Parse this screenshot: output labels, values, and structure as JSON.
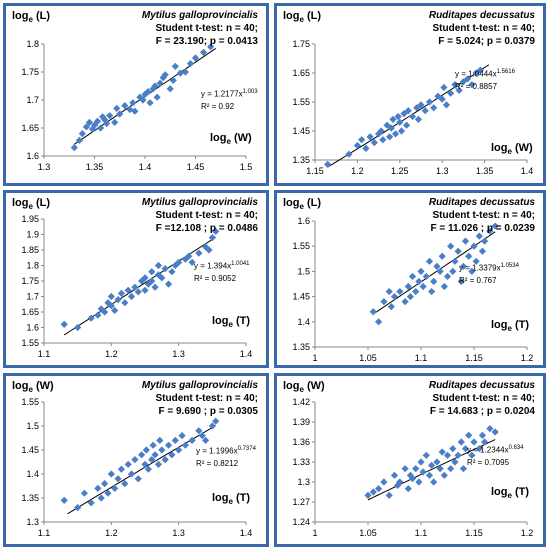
{
  "colors": {
    "border": "#3a68a8",
    "marker": "#4a7fc8",
    "line": "#000000"
  },
  "chart_data": [
    {
      "type": "scatter",
      "title": "Mytilus galloprovincialis",
      "test": "Student t-test: n = 40;",
      "stat": "F = 23.190; p = 0.0413",
      "ylabel_base": "log",
      "ylabel_sub": "e",
      "ylabel_var": "(L)",
      "xlabel_base": "log",
      "xlabel_sub": "e",
      "xlabel_var": "(W)",
      "eq_base": "y = 1.2177x",
      "eq_exp": "1.003",
      "r2": "R² = 0.92",
      "xlim": [
        1.3,
        1.5
      ],
      "ylim": [
        1.6,
        1.8
      ],
      "xticks": [
        "1.3",
        "1.35",
        "1.4",
        "1.45",
        "1.5"
      ],
      "yticks": [
        "1.6",
        "1.65",
        "1.7",
        "1.75",
        "1.8"
      ],
      "fit": {
        "a": 1.2177,
        "b": 1.003,
        "x_range": [
          1.33,
          1.47
        ]
      },
      "x": [
        1.33,
        1.335,
        1.338,
        1.342,
        1.345,
        1.348,
        1.35,
        1.353,
        1.356,
        1.358,
        1.36,
        1.362,
        1.365,
        1.37,
        1.372,
        1.375,
        1.38,
        1.385,
        1.388,
        1.39,
        1.395,
        1.398,
        1.4,
        1.403,
        1.405,
        1.408,
        1.41,
        1.412,
        1.415,
        1.418,
        1.42,
        1.425,
        1.428,
        1.43,
        1.435,
        1.44,
        1.445,
        1.45,
        1.458,
        1.465
      ],
      "y": [
        1.615,
        1.628,
        1.64,
        1.652,
        1.66,
        1.648,
        1.655,
        1.662,
        1.65,
        1.67,
        1.665,
        1.658,
        1.672,
        1.66,
        1.685,
        1.675,
        1.69,
        1.683,
        1.695,
        1.68,
        1.705,
        1.7,
        1.71,
        1.715,
        1.695,
        1.72,
        1.725,
        1.705,
        1.73,
        1.74,
        1.745,
        1.72,
        1.735,
        1.76,
        1.748,
        1.75,
        1.765,
        1.775,
        1.785,
        1.795
      ]
    },
    {
      "type": "scatter",
      "title": "Ruditapes decussatus",
      "test": "Student t-test: n = 40;",
      "stat": "F = 5.024; p = 0.0379",
      "ylabel_base": "log",
      "ylabel_sub": "e",
      "ylabel_var": "(L)",
      "xlabel_base": "log",
      "xlabel_sub": "e",
      "xlabel_var": "(W)",
      "eq_base": "y = 1.0444x",
      "eq_exp": "1.5616",
      "r2": "R² = 0.8857",
      "xlim": [
        1.15,
        1.4
      ],
      "ylim": [
        1.35,
        1.75
      ],
      "xticks": [
        "1.15",
        "1.2",
        "1.25",
        "1.3",
        "1.35",
        "1.4"
      ],
      "yticks": [
        "1.35",
        "1.45",
        "1.55",
        "1.65",
        "1.75"
      ],
      "fit": {
        "a": 1.0444,
        "b": 1.5616,
        "x_range": [
          1.165,
          1.355
        ]
      },
      "x": [
        1.165,
        1.19,
        1.2,
        1.205,
        1.21,
        1.215,
        1.22,
        1.225,
        1.228,
        1.23,
        1.235,
        1.238,
        1.24,
        1.242,
        1.245,
        1.248,
        1.25,
        1.252,
        1.255,
        1.258,
        1.26,
        1.265,
        1.27,
        1.272,
        1.275,
        1.28,
        1.285,
        1.29,
        1.295,
        1.3,
        1.302,
        1.305,
        1.31,
        1.315,
        1.32,
        1.325,
        1.33,
        1.335,
        1.34,
        1.345
      ],
      "y": [
        1.335,
        1.37,
        1.4,
        1.42,
        1.39,
        1.43,
        1.41,
        1.44,
        1.45,
        1.42,
        1.47,
        1.43,
        1.46,
        1.49,
        1.44,
        1.5,
        1.48,
        1.45,
        1.51,
        1.47,
        1.52,
        1.5,
        1.53,
        1.49,
        1.54,
        1.52,
        1.55,
        1.53,
        1.57,
        1.56,
        1.6,
        1.54,
        1.58,
        1.61,
        1.59,
        1.62,
        1.63,
        1.61,
        1.65,
        1.66
      ]
    },
    {
      "type": "scatter",
      "title": "Mytilus galloprovincialis",
      "test": "Student t-test: n = 40;",
      "stat": "F =12.108 ; p = 0.0486",
      "ylabel_base": "log",
      "ylabel_sub": "e",
      "ylabel_var": "(L)",
      "xlabel_base": "log",
      "xlabel_sub": "e",
      "xlabel_var": "(T)",
      "eq_base": "y = 1.394x",
      "eq_exp": "1.0041",
      "r2": "R² = 0.9052",
      "xlim": [
        1.1,
        1.4
      ],
      "ylim": [
        1.55,
        1.95
      ],
      "xticks": [
        "1.1",
        "1.2",
        "1.3",
        "1.4"
      ],
      "yticks": [
        "1.55",
        "1.6",
        "1.65",
        "1.7",
        "1.75",
        "1.8",
        "1.85",
        "1.9",
        "1.95"
      ],
      "fit": {
        "a": 1.394,
        "b": 1.0041,
        "x_range": [
          1.13,
          1.355
        ]
      },
      "x": [
        1.13,
        1.15,
        1.17,
        1.18,
        1.185,
        1.19,
        1.195,
        1.2,
        1.2,
        1.205,
        1.21,
        1.215,
        1.22,
        1.225,
        1.23,
        1.235,
        1.24,
        1.245,
        1.25,
        1.25,
        1.255,
        1.26,
        1.26,
        1.265,
        1.27,
        1.27,
        1.275,
        1.28,
        1.285,
        1.29,
        1.295,
        1.3,
        1.31,
        1.315,
        1.32,
        1.33,
        1.34,
        1.345,
        1.35,
        1.355
      ],
      "y": [
        1.61,
        1.6,
        1.63,
        1.64,
        1.66,
        1.65,
        1.68,
        1.67,
        1.7,
        1.655,
        1.69,
        1.71,
        1.68,
        1.72,
        1.7,
        1.73,
        1.715,
        1.75,
        1.72,
        1.76,
        1.74,
        1.78,
        1.75,
        1.73,
        1.77,
        1.8,
        1.76,
        1.79,
        1.74,
        1.78,
        1.8,
        1.81,
        1.82,
        1.83,
        1.81,
        1.84,
        1.86,
        1.85,
        1.89,
        1.91
      ]
    },
    {
      "type": "scatter",
      "title": "Ruditapes decussatus",
      "test": "Student t-test: n = 40;",
      "stat": "F = 11.026 ; p = 0.0239",
      "ylabel_base": "log",
      "ylabel_sub": "e",
      "ylabel_var": "(L)",
      "xlabel_base": "log",
      "xlabel_sub": "e",
      "xlabel_var": "(T)",
      "eq_base": "y = 1.3379x",
      "eq_exp": "1.0534",
      "r2": "R² = 0.767",
      "xlim": [
        1,
        1.2
      ],
      "ylim": [
        1.35,
        1.6
      ],
      "xticks": [
        "1",
        "1.05",
        "1.1",
        "1.15",
        "1.2"
      ],
      "yticks": [
        "1.35",
        "1.4",
        "1.45",
        "1.5",
        "1.55",
        "1.6"
      ],
      "fit": {
        "a": 1.3379,
        "b": 1.0534,
        "x_range": [
          1.055,
          1.17
        ]
      },
      "x": [
        1.055,
        1.06,
        1.065,
        1.07,
        1.072,
        1.075,
        1.08,
        1.085,
        1.088,
        1.09,
        1.092,
        1.095,
        1.098,
        1.1,
        1.102,
        1.105,
        1.108,
        1.11,
        1.112,
        1.115,
        1.118,
        1.12,
        1.122,
        1.125,
        1.128,
        1.13,
        1.132,
        1.135,
        1.138,
        1.14,
        1.142,
        1.145,
        1.148,
        1.15,
        1.152,
        1.155,
        1.158,
        1.16,
        1.165,
        1.17
      ],
      "y": [
        1.42,
        1.4,
        1.44,
        1.46,
        1.43,
        1.45,
        1.46,
        1.44,
        1.47,
        1.45,
        1.49,
        1.46,
        1.48,
        1.5,
        1.47,
        1.49,
        1.52,
        1.46,
        1.48,
        1.51,
        1.5,
        1.53,
        1.47,
        1.49,
        1.55,
        1.5,
        1.52,
        1.54,
        1.48,
        1.51,
        1.56,
        1.53,
        1.5,
        1.55,
        1.52,
        1.57,
        1.54,
        1.56,
        1.58,
        1.59
      ]
    },
    {
      "type": "scatter",
      "title": "Mytilus galloprovincialis",
      "test": "Student t-test: n = 40;",
      "stat": "F = 9.690 ; p = 0.0305",
      "ylabel_base": "log",
      "ylabel_sub": "e",
      "ylabel_var": "(W)",
      "xlabel_base": "log",
      "xlabel_sub": "e",
      "xlabel_var": "(T)",
      "eq_base": "y = 1.1996x",
      "eq_exp": "0.7374",
      "r2": "R² = 0.8212",
      "xlim": [
        1.1,
        1.4
      ],
      "ylim": [
        1.3,
        1.55
      ],
      "xticks": [
        "1.1",
        "1.2",
        "1.3",
        "1.4"
      ],
      "yticks": [
        "1.3",
        "1.35",
        "1.4",
        "1.45",
        "1.5",
        "1.55"
      ],
      "fit": {
        "a": 1.1996,
        "b": 0.7374,
        "x_range": [
          1.135,
          1.355
        ]
      },
      "x": [
        1.13,
        1.15,
        1.16,
        1.17,
        1.18,
        1.185,
        1.19,
        1.195,
        1.2,
        1.205,
        1.21,
        1.215,
        1.22,
        1.225,
        1.23,
        1.235,
        1.24,
        1.245,
        1.25,
        1.252,
        1.255,
        1.26,
        1.262,
        1.265,
        1.27,
        1.272,
        1.275,
        1.28,
        1.285,
        1.29,
        1.295,
        1.3,
        1.305,
        1.31,
        1.32,
        1.33,
        1.335,
        1.34,
        1.35,
        1.355
      ],
      "y": [
        1.345,
        1.33,
        1.36,
        1.34,
        1.37,
        1.35,
        1.38,
        1.36,
        1.4,
        1.37,
        1.39,
        1.41,
        1.38,
        1.42,
        1.4,
        1.43,
        1.39,
        1.44,
        1.42,
        1.45,
        1.41,
        1.43,
        1.46,
        1.44,
        1.42,
        1.47,
        1.45,
        1.43,
        1.46,
        1.44,
        1.47,
        1.45,
        1.48,
        1.46,
        1.47,
        1.49,
        1.48,
        1.47,
        1.5,
        1.51
      ]
    },
    {
      "type": "scatter",
      "title": "Ruditapes decussatus",
      "test": "Student t-test: n = 40;",
      "stat": "F = 14.683 ; p = 0.0204",
      "ylabel_base": "log",
      "ylabel_sub": "e",
      "ylabel_var": "(W)",
      "xlabel_base": "log",
      "xlabel_sub": "e",
      "xlabel_var": "(T)",
      "eq_base": "y = 1.2344x",
      "eq_exp": "0.634",
      "r2": "R² = 0.7095",
      "xlim": [
        1,
        1.2
      ],
      "ylim": [
        1.24,
        1.42
      ],
      "xticks": [
        "1",
        "1.05",
        "1.1",
        "1.15",
        "1.2"
      ],
      "yticks": [
        "1.24",
        "1.27",
        "1.3",
        "1.33",
        "1.36",
        "1.39",
        "1.42"
      ],
      "fit": {
        "a": 1.2344,
        "b": 0.634,
        "x_range": [
          1.05,
          1.17
        ]
      },
      "x": [
        1.05,
        1.055,
        1.06,
        1.065,
        1.07,
        1.075,
        1.078,
        1.08,
        1.085,
        1.088,
        1.09,
        1.092,
        1.095,
        1.098,
        1.1,
        1.102,
        1.105,
        1.108,
        1.11,
        1.112,
        1.115,
        1.118,
        1.12,
        1.122,
        1.125,
        1.128,
        1.13,
        1.132,
        1.135,
        1.138,
        1.14,
        1.142,
        1.145,
        1.148,
        1.15,
        1.155,
        1.158,
        1.16,
        1.165,
        1.17
      ],
      "y": [
        1.28,
        1.285,
        1.29,
        1.3,
        1.28,
        1.31,
        1.295,
        1.3,
        1.32,
        1.29,
        1.31,
        1.305,
        1.32,
        1.3,
        1.33,
        1.315,
        1.34,
        1.31,
        1.325,
        1.3,
        1.33,
        1.32,
        1.345,
        1.31,
        1.34,
        1.32,
        1.35,
        1.33,
        1.34,
        1.36,
        1.32,
        1.35,
        1.37,
        1.34,
        1.36,
        1.35,
        1.37,
        1.36,
        1.38,
        1.375
      ]
    }
  ]
}
